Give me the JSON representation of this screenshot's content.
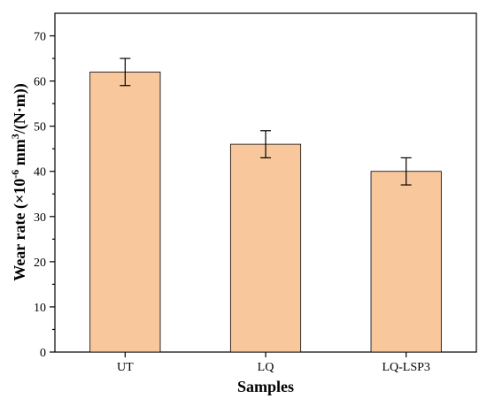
{
  "chart_data": {
    "type": "bar",
    "categories": [
      "UT",
      "LQ",
      "LQ-LSP3"
    ],
    "values": [
      62,
      46,
      40
    ],
    "errors": [
      3,
      3,
      3
    ],
    "xlabel": "Samples",
    "ylabel": {
      "prefix": "Wear rate (×10",
      "exp1": "-6",
      "mid": " mm",
      "exp2": "3",
      "suffix": "/(N·m))"
    },
    "ylim": [
      0,
      75
    ],
    "yticks": [
      "0",
      "10",
      "20",
      "30",
      "40",
      "50",
      "60",
      "70"
    ],
    "bar_color": "#F8C79B",
    "grid": false,
    "legend": "none"
  }
}
